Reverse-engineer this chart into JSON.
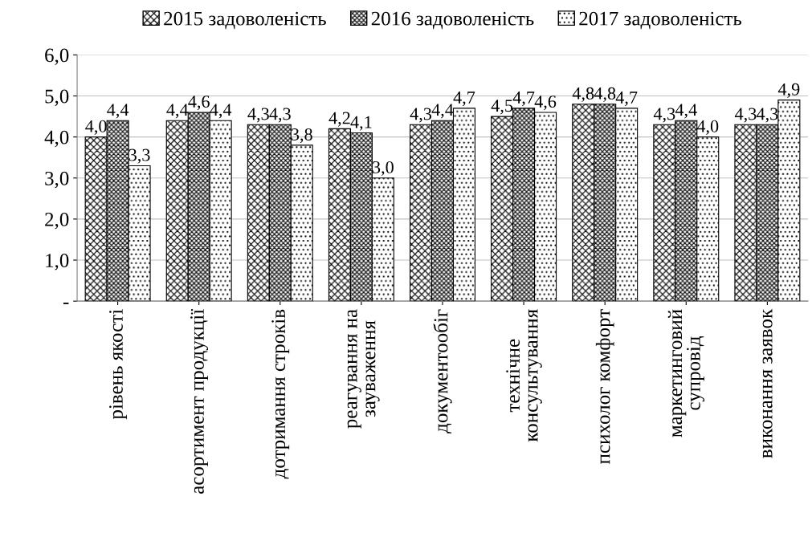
{
  "chart_data": {
    "type": "bar",
    "categories": [
      "рівень якості",
      "асортимент продукції",
      "дотримання строків",
      "реагування на\nзауваження",
      "документообіг",
      "технічне\nконсультування",
      "психолог комфорт",
      "маркетинговий\nсупровід",
      "виконання заявок"
    ],
    "series": [
      {
        "name": "2015 задоволеність",
        "color": "#000000",
        "values": [
          4.0,
          4.4,
          4.3,
          4.2,
          4.3,
          4.5,
          4.8,
          4.3,
          4.3
        ],
        "value_labels": [
          "4,0",
          "4,4",
          "4,3",
          "4,2",
          "4,3",
          "4,5",
          "4,8",
          "4,3",
          "4,3"
        ]
      },
      {
        "name": "2016 задоволеність",
        "color": "#000000",
        "values": [
          4.4,
          4.6,
          4.3,
          4.1,
          4.4,
          4.7,
          4.8,
          4.4,
          4.3
        ],
        "value_labels": [
          "4,4",
          "4,6",
          "4,3",
          "4,1",
          "4,4",
          "4,7",
          "4,8",
          "4,4",
          "4,3"
        ]
      },
      {
        "name": "2017 задоволеність",
        "color": "#000000",
        "values": [
          3.3,
          4.4,
          3.8,
          3.0,
          4.7,
          4.6,
          4.7,
          4.0,
          4.9
        ],
        "value_labels": [
          "3,3",
          "4,4",
          "3,8",
          "3,0",
          "4,7",
          "4,6",
          "4,7",
          "4,0",
          "4,9"
        ]
      }
    ],
    "ylim": [
      0,
      6
    ],
    "yticks": [
      {
        "value": 0,
        "label": "-"
      },
      {
        "value": 1,
        "label": "1,0"
      },
      {
        "value": 2,
        "label": "2,0"
      },
      {
        "value": 3,
        "label": "3,0"
      },
      {
        "value": 4,
        "label": "4,0"
      },
      {
        "value": 5,
        "label": "5,0"
      },
      {
        "value": 6,
        "label": "6,0"
      }
    ],
    "grid": "y",
    "legend": "top"
  }
}
